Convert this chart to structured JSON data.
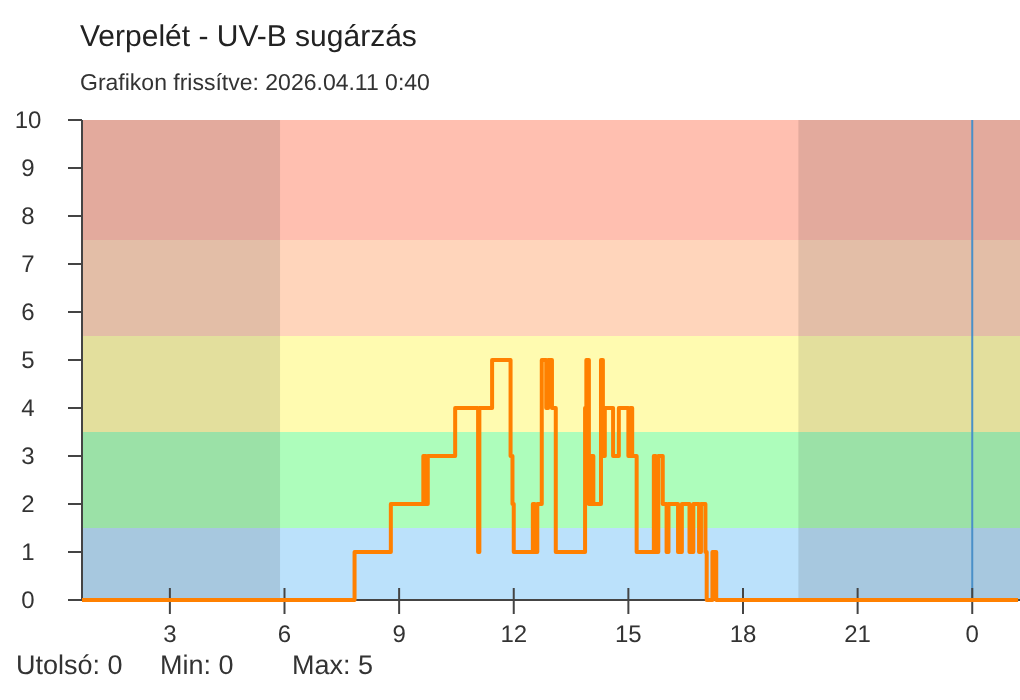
{
  "chart_data": {
    "type": "step",
    "title": "Verpelét - UV-B sugárzás",
    "subtitle": "Grafikon frissítve: 2026.04.11 0:40",
    "annotations": [
      "Utolsó: 0",
      "Min: 0",
      "Max: 5"
    ],
    "xlim": [
      "2026-04-10T00:42",
      "2026-04-11T01:15"
    ],
    "xticks": [
      {
        "value": "2026-04-10T03:00",
        "label": "3"
      },
      {
        "value": "2026-04-10T06:00",
        "label": "6"
      },
      {
        "value": "2026-04-10T09:00",
        "label": "9"
      },
      {
        "value": "2026-04-10T12:00",
        "label": "12"
      },
      {
        "value": "2026-04-10T15:00",
        "label": "15"
      },
      {
        "value": "2026-04-10T18:00",
        "label": "18"
      },
      {
        "value": "2026-04-10T21:00",
        "label": "21"
      },
      {
        "value": "2026-04-11T00:00",
        "label": "0"
      }
    ],
    "ylim": [
      0,
      10
    ],
    "yticks": [
      0,
      1,
      2,
      3,
      4,
      5,
      6,
      7,
      8,
      9,
      10
    ],
    "grid": false,
    "bands": [
      {
        "axis": "y",
        "from": 0,
        "to": 1.5,
        "color": "#bbe1fb"
      },
      {
        "axis": "y",
        "from": 1.5,
        "to": 3.5,
        "color": "#adfdbb"
      },
      {
        "axis": "y",
        "from": 3.5,
        "to": 5.5,
        "color": "#fffbb0"
      },
      {
        "axis": "y",
        "from": 5.5,
        "to": 7.5,
        "color": "#ffd5bb"
      },
      {
        "axis": "y",
        "from": 7.5,
        "to": 10,
        "color": "#ffbfb0"
      },
      {
        "axis": "x",
        "from": "2026-04-10T00:42",
        "to": "2026-04-10T05:53",
        "color": "#1a1a1a"
      },
      {
        "axis": "x",
        "from": "2026-04-10T19:27",
        "to": "2026-04-11T01:15",
        "color": "#1a1a1a"
      }
    ],
    "ref_lines": [
      {
        "axis": "x",
        "value": "2026-04-11T00:00",
        "color": "#4a90c8"
      }
    ],
    "series": [
      {
        "color": "#ff8000",
        "x": [
          "2026-04-10T00:42",
          "2026-04-10T07:50",
          "2026-04-10T08:47",
          "2026-04-10T09:38",
          "2026-04-10T09:42",
          "2026-04-10T09:45",
          "2026-04-10T10:28",
          "2026-04-10T11:04",
          "2026-04-10T11:06",
          "2026-04-10T11:26",
          "2026-04-10T11:55",
          "2026-04-10T11:58",
          "2026-04-10T12:00",
          "2026-04-10T12:30",
          "2026-04-10T12:33",
          "2026-04-10T12:37",
          "2026-04-10T12:44",
          "2026-04-10T12:51",
          "2026-04-10T12:54",
          "2026-04-10T13:00",
          "2026-04-10T13:06",
          "2026-04-10T13:52",
          "2026-04-10T13:54",
          "2026-04-10T13:58",
          "2026-04-10T14:01",
          "2026-04-10T14:05",
          "2026-04-10T14:17",
          "2026-04-10T14:20",
          "2026-04-10T14:23",
          "2026-04-10T14:36",
          "2026-04-10T14:45",
          "2026-04-10T15:00",
          "2026-04-10T15:03",
          "2026-04-10T15:06",
          "2026-04-10T15:13",
          "2026-04-10T15:40",
          "2026-04-10T15:43",
          "2026-04-10T15:47",
          "2026-04-10T15:54",
          "2026-04-10T16:00",
          "2026-04-10T16:03",
          "2026-04-10T16:18",
          "2026-04-10T16:24",
          "2026-04-10T16:36",
          "2026-04-10T16:42",
          "2026-04-10T16:51",
          "2026-04-10T16:54",
          "2026-04-10T17:01",
          "2026-04-10T17:03",
          "2026-04-10T17:12",
          "2026-04-10T17:18",
          "2026-04-11T01:12"
        ],
        "values": [
          0,
          1,
          2,
          3,
          2,
          3,
          4,
          1,
          4,
          5,
          3,
          2,
          1,
          2,
          1,
          2,
          5,
          4,
          5,
          4,
          1,
          4,
          5,
          2,
          3,
          2,
          5,
          3,
          4,
          3,
          4,
          3,
          4,
          3,
          1,
          3,
          1,
          3,
          2,
          1,
          2,
          1,
          2,
          1,
          2,
          1,
          2,
          1,
          0,
          1,
          0,
          0
        ]
      }
    ]
  }
}
